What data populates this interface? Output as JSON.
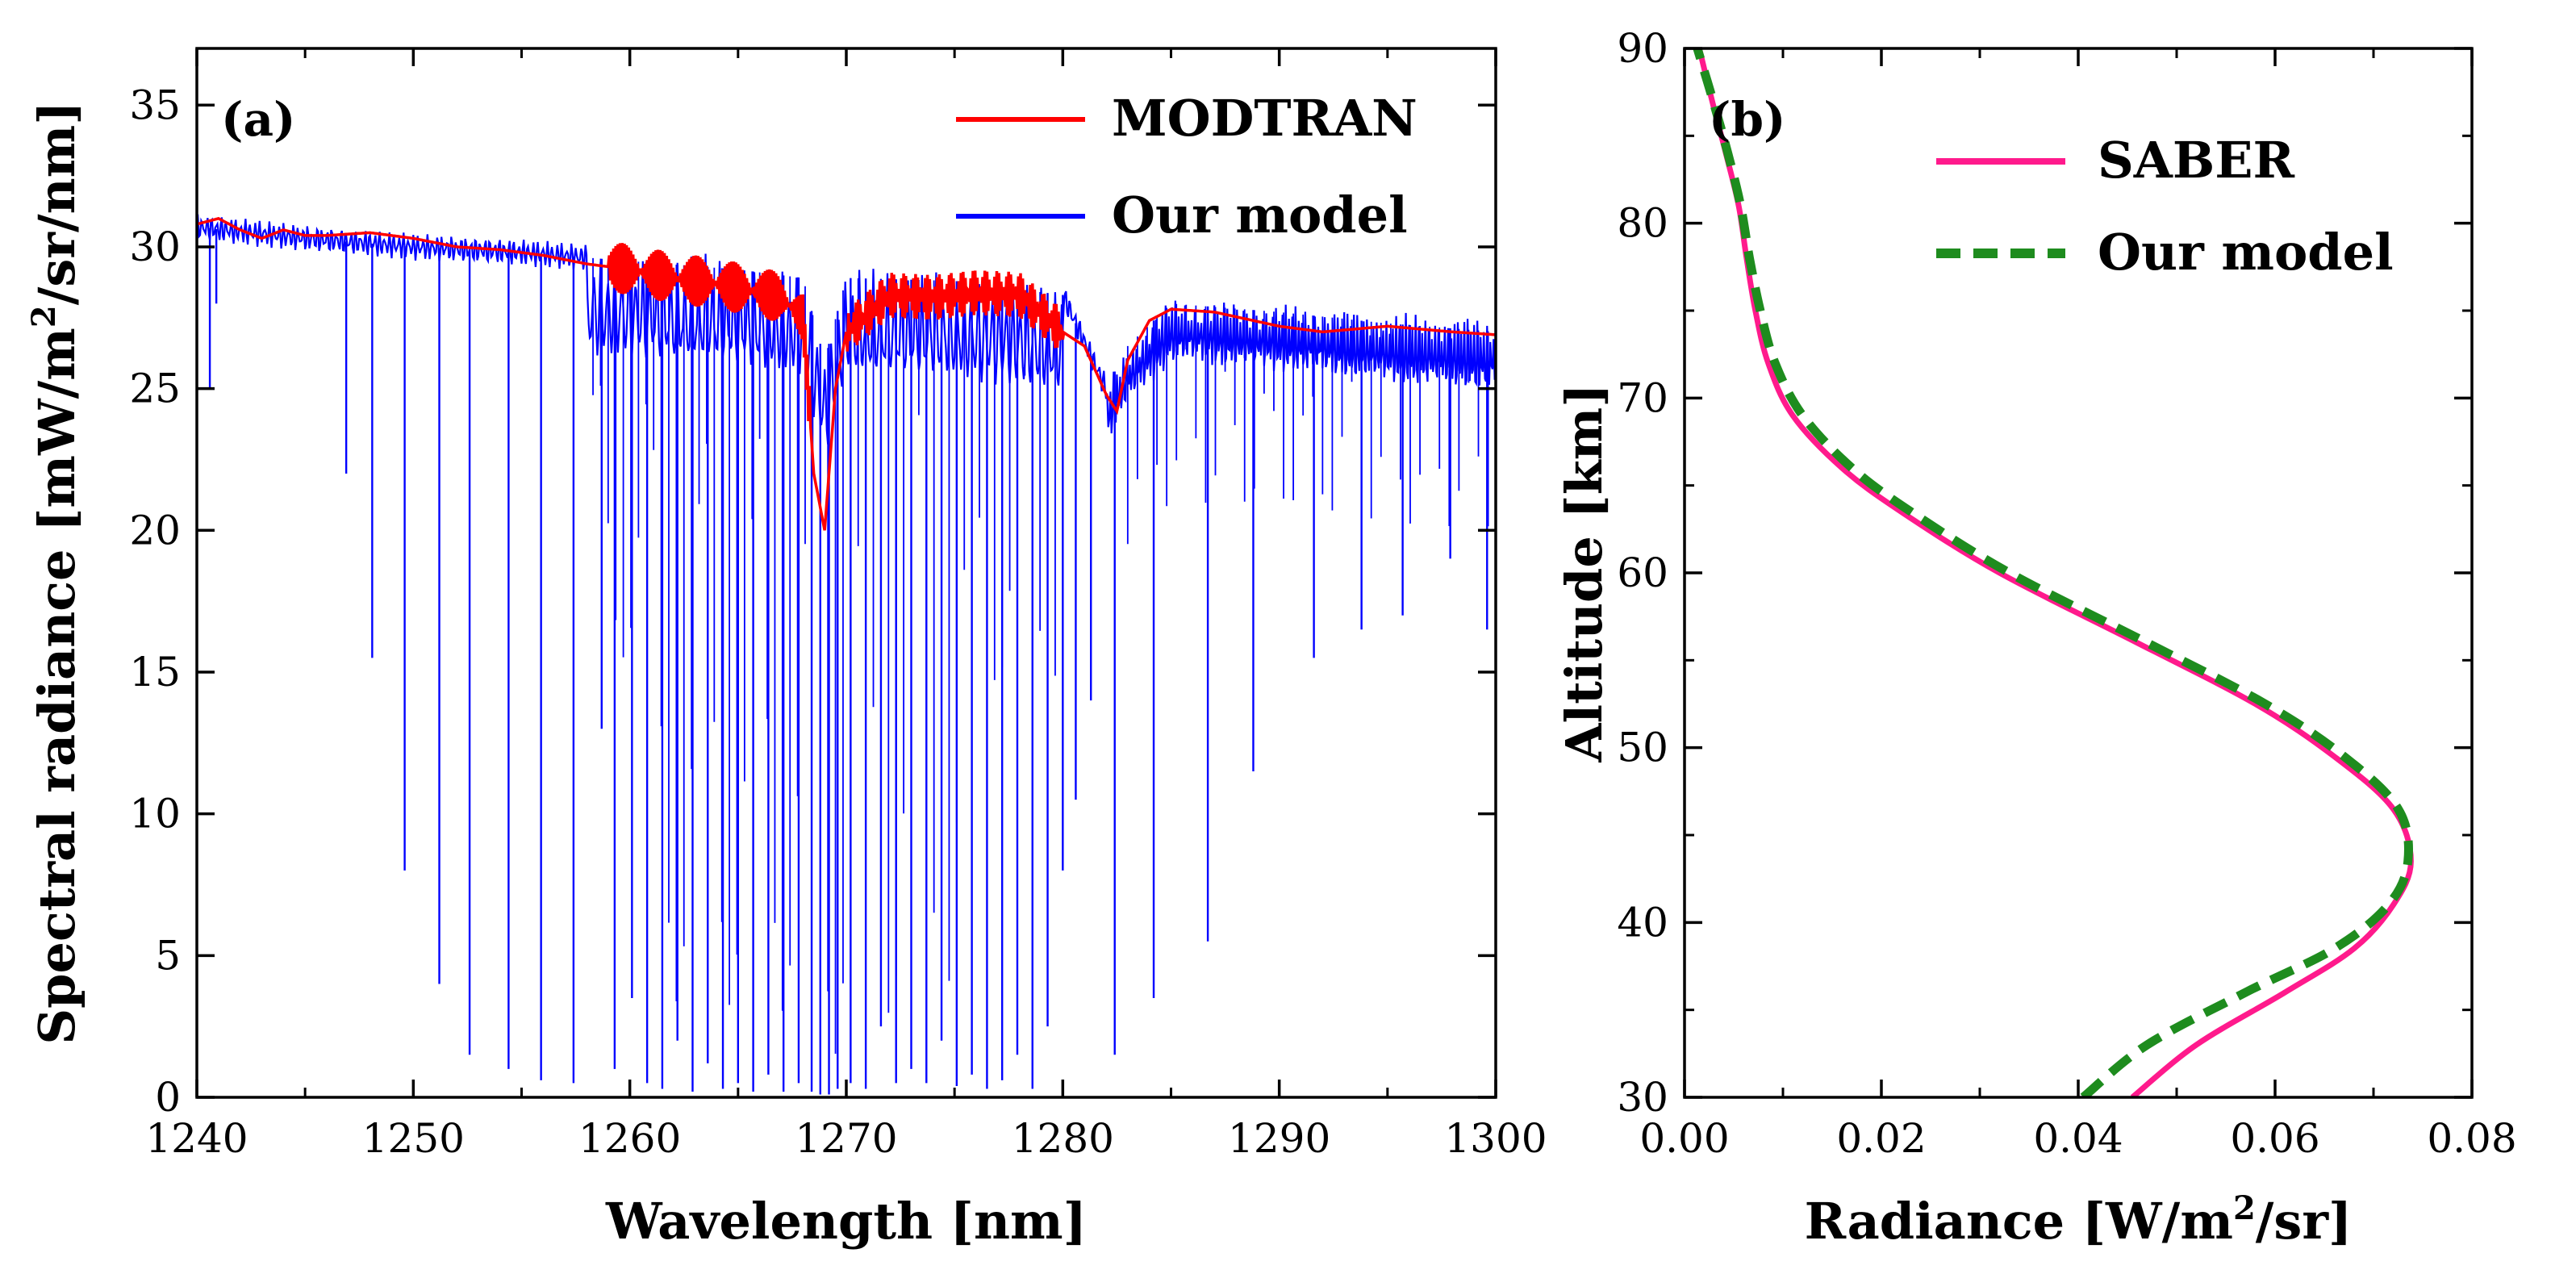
{
  "chart_data": [
    {
      "panel": "(a)",
      "type": "line",
      "xlabel": "Wavelength [nm]",
      "ylabel_main": "Spectral radiance [mW/m",
      "ylabel_sup": "2",
      "ylabel_tail": "/sr/nm]",
      "xlim": [
        1240,
        1300
      ],
      "ylim": [
        0,
        37
      ],
      "xticks": [
        1240,
        1250,
        1260,
        1270,
        1280,
        1290,
        1300
      ],
      "yticks": [
        0,
        5,
        10,
        15,
        20,
        25,
        30,
        35
      ],
      "legend": [
        "MODTRAN",
        "Our model"
      ],
      "series": [
        {
          "name": "MODTRAN",
          "color": "#ff0000",
          "x": [
            1240,
            1241,
            1242,
            1243,
            1244,
            1245,
            1246,
            1248,
            1250,
            1252,
            1254,
            1256,
            1258,
            1260,
            1262,
            1264,
            1266,
            1267,
            1268,
            1268.5,
            1269,
            1269.5,
            1270,
            1272,
            1274,
            1276,
            1278,
            1280,
            1281,
            1282,
            1282.5,
            1283,
            1284,
            1285,
            1287,
            1290,
            1292,
            1295,
            1298,
            1300
          ],
          "y": [
            30.8,
            31.0,
            30.6,
            30.3,
            30.6,
            30.4,
            30.4,
            30.5,
            30.3,
            30.0,
            29.9,
            29.7,
            29.4,
            29.2,
            28.9,
            28.7,
            28.4,
            28.2,
            27.5,
            22.0,
            20.0,
            25.0,
            27.0,
            28.3,
            28.2,
            28.4,
            28.3,
            27.0,
            26.5,
            24.8,
            24.2,
            26.0,
            27.4,
            27.8,
            27.7,
            27.2,
            27.0,
            27.2,
            27.0,
            26.9
          ]
        },
        {
          "name": "Our model",
          "color": "#0000ff",
          "baseline_x": [
            1240,
            1245,
            1250,
            1255,
            1260,
            1265,
            1268,
            1269,
            1270,
            1275,
            1280,
            1282,
            1283,
            1285,
            1290,
            1295,
            1300
          ],
          "baseline_y": [
            30.7,
            30.3,
            30.0,
            29.8,
            29.5,
            29.2,
            28.9,
            26.0,
            28.9,
            28.8,
            28.3,
            25.0,
            26.5,
            28.0,
            27.7,
            27.3,
            27.0
          ],
          "line_x": [
            1240.6,
            1240.9,
            1246.9,
            1248.1,
            1249.6,
            1251.2,
            1252.6,
            1254.4,
            1255.9,
            1257.4,
            1258.7,
            1259.3,
            1260.1,
            1260.8,
            1261.5,
            1262.2,
            1262.9,
            1263.6,
            1264.3,
            1265.0,
            1265.7,
            1266.4,
            1267.1,
            1267.8,
            1268.4,
            1268.8,
            1269.2,
            1269.6,
            1270.2,
            1270.9,
            1271.6,
            1272.3,
            1273.0,
            1273.7,
            1274.4,
            1275.1,
            1275.8,
            1276.5,
            1277.2,
            1277.9,
            1278.6,
            1279.3,
            1280.0,
            1280.6,
            1281.3,
            1282.4,
            1284.2,
            1286.7,
            1288.8,
            1291.6,
            1293.8,
            1295.7,
            1297.9,
            1299.6
          ],
          "line_min": [
            25.0,
            28.0,
            22.0,
            15.5,
            8.0,
            4.0,
            1.5,
            1.0,
            0.6,
            0.5,
            13.0,
            1.0,
            3.5,
            0.5,
            0.3,
            2.0,
            0.2,
            1.2,
            0.3,
            0.5,
            0.2,
            0.8,
            0.2,
            0.5,
            0.2,
            0.1,
            0.1,
            0.3,
            0.5,
            0.3,
            2.5,
            0.5,
            1.0,
            0.5,
            2.0,
            0.4,
            0.8,
            0.3,
            0.6,
            1.5,
            0.3,
            2.5,
            8.0,
            10.5,
            14.0,
            1.5,
            3.5,
            5.5,
            11.5,
            15.5,
            16.5,
            17.0,
            19.0,
            16.5
          ]
        }
      ]
    },
    {
      "panel": "(b)",
      "type": "line",
      "xlabel_main": "Radiance [W/m",
      "xlabel_sup": "2",
      "xlabel_tail": "/sr]",
      "ylabel": "Altitude [km]",
      "xlim": [
        0.0,
        0.08
      ],
      "ylim": [
        30,
        90
      ],
      "xticks": [
        "0.00",
        "0.02",
        "0.04",
        "0.06",
        "0.08"
      ],
      "yticks": [
        30,
        40,
        50,
        60,
        70,
        80,
        90
      ],
      "legend": [
        "SABER",
        "Our model"
      ],
      "series": [
        {
          "name": "SABER",
          "color": "#ff1a8c",
          "style": "solid",
          "x": [
            0.0455,
            0.052,
            0.061,
            0.068,
            0.072,
            0.0738,
            0.072,
            0.066,
            0.058,
            0.046,
            0.032,
            0.022,
            0.016,
            0.011,
            0.0085,
            0.0072,
            0.0063,
            0.0055,
            0.0042,
            0.0028,
            0.0015
          ],
          "y": [
            30,
            33,
            36,
            38.5,
            41,
            43.5,
            46.5,
            49.5,
            52.5,
            56,
            60,
            63.5,
            66,
            69,
            72,
            75,
            78,
            81,
            84,
            87,
            90
          ]
        },
        {
          "name": "Our model",
          "color": "#1e8c1e",
          "style": "dashed",
          "x": [
            0.0405,
            0.047,
            0.057,
            0.066,
            0.0715,
            0.0735,
            0.0725,
            0.067,
            0.059,
            0.047,
            0.033,
            0.023,
            0.017,
            0.012,
            0.0092,
            0.0077,
            0.0066,
            0.0057,
            0.0044,
            0.0029,
            0.0013
          ],
          "y": [
            30,
            33,
            36,
            38.5,
            41,
            43.5,
            46.5,
            49.5,
            52.5,
            56,
            60,
            63.5,
            66,
            69,
            72,
            75,
            78,
            81,
            84,
            87,
            90
          ]
        }
      ]
    }
  ]
}
